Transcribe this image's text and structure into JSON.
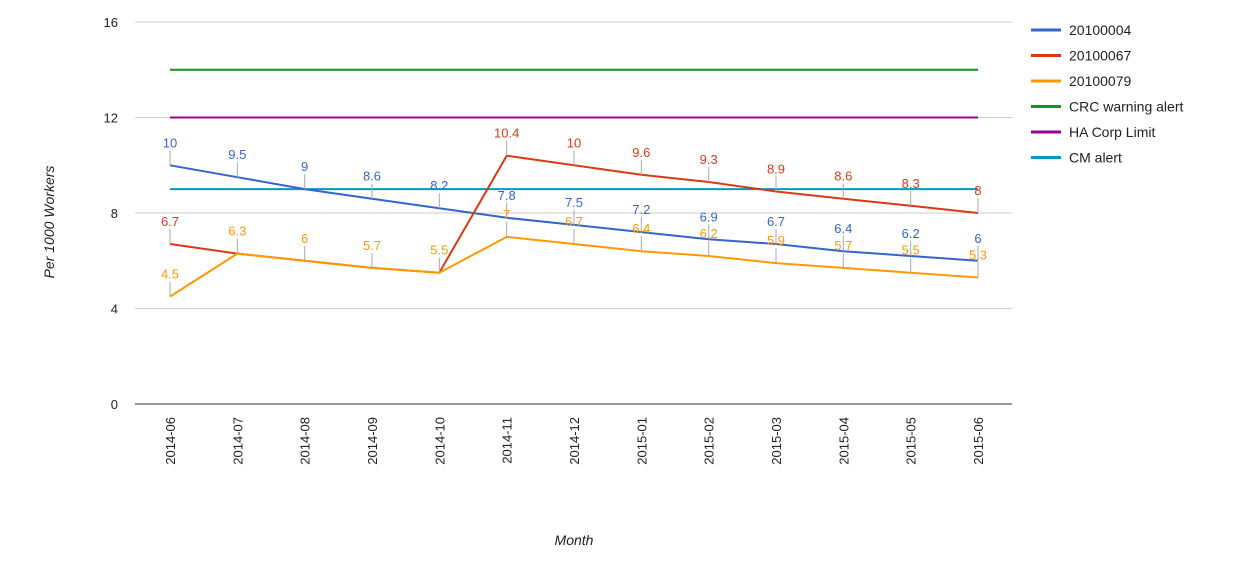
{
  "chart_data": {
    "type": "line",
    "xlabel": "Month",
    "ylabel": "Per 1000 Workers",
    "ylim": [
      0,
      16
    ],
    "yticks": [
      "0",
      "4",
      "8",
      "12",
      "16"
    ],
    "grid": true,
    "legend_position": "right",
    "categories": [
      "2014-06",
      "2014-07",
      "2014-08",
      "2014-09",
      "2014-10",
      "2014-11",
      "2014-12",
      "2015-01",
      "2015-02",
      "2015-03",
      "2015-04",
      "2015-05",
      "2015-06"
    ],
    "series": [
      {
        "name": "20100004",
        "color": "#3366cc",
        "values": [
          10,
          9.5,
          9,
          8.6,
          8.2,
          7.8,
          7.5,
          7.2,
          6.9,
          6.7,
          6.4,
          6.2,
          6
        ],
        "labels": [
          "10",
          "9.5",
          "9",
          "8.6",
          "8.2",
          "7.8",
          "7.5",
          "7.2",
          "6.9",
          "6.7",
          "6.4",
          "6.2",
          "6"
        ],
        "data_labels": true
      },
      {
        "name": "20100067",
        "color": "#dc3912",
        "values": [
          6.7,
          6.3,
          6,
          5.7,
          5.5,
          10.4,
          10,
          9.6,
          9.3,
          8.9,
          8.6,
          8.3,
          8
        ],
        "labels": [
          "6.7",
          "",
          "",
          "",
          "",
          "10.4",
          "10",
          "9.6",
          "9.3",
          "8.9",
          "8.6",
          "8.3",
          "8"
        ],
        "data_labels": true
      },
      {
        "name": "20100079",
        "color": "#ff9900",
        "values": [
          4.5,
          6.3,
          6,
          5.7,
          5.5,
          7,
          6.7,
          6.4,
          6.2,
          5.9,
          5.7,
          5.5,
          5.3
        ],
        "labels": [
          "4.5",
          "6.3",
          "6",
          "5.7",
          "5.5",
          "7",
          "6.7",
          "6.4",
          "6.2",
          "5.9",
          "5.7",
          "5.5",
          "5.3"
        ],
        "data_labels": true
      },
      {
        "name": "CRC warning alert",
        "color": "#109618",
        "values": [
          14,
          14,
          14,
          14,
          14,
          14,
          14,
          14,
          14,
          14,
          14,
          14,
          14
        ],
        "data_labels": false
      },
      {
        "name": "HA Corp Limit",
        "color": "#990099",
        "values": [
          12,
          12,
          12,
          12,
          12,
          12,
          12,
          12,
          12,
          12,
          12,
          12,
          12
        ],
        "data_labels": false
      },
      {
        "name": "CM alert",
        "color": "#0099c6",
        "values": [
          9,
          9,
          9,
          9,
          9,
          9,
          9,
          9,
          9,
          9,
          9,
          9,
          9
        ],
        "data_labels": false
      }
    ]
  }
}
